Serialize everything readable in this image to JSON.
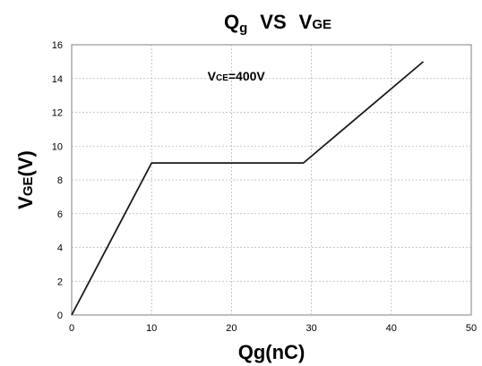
{
  "chart_data": {
    "type": "line",
    "title": {
      "main": "Q",
      "main_sub": "g",
      "vs": "VS",
      "right": "V",
      "right_sub": "GE"
    },
    "xlabel": "Qg(nC)",
    "ylabel": {
      "main": "V",
      "sub": "GE",
      "suffix": "(V)"
    },
    "xlim": [
      0,
      50
    ],
    "ylim": [
      0,
      16
    ],
    "x_ticks": [
      0,
      10,
      20,
      30,
      40,
      50
    ],
    "y_ticks": [
      0,
      2,
      4,
      6,
      8,
      10,
      12,
      14,
      16
    ],
    "grid": true,
    "annotation": {
      "main": "V",
      "sub": "CE",
      "suffix": "=400V",
      "x": 17,
      "y": 14
    },
    "series": [
      {
        "x": [
          0,
          10,
          29,
          44
        ],
        "y": [
          0,
          9,
          9,
          15
        ],
        "color": "#1a1a1a"
      }
    ]
  }
}
